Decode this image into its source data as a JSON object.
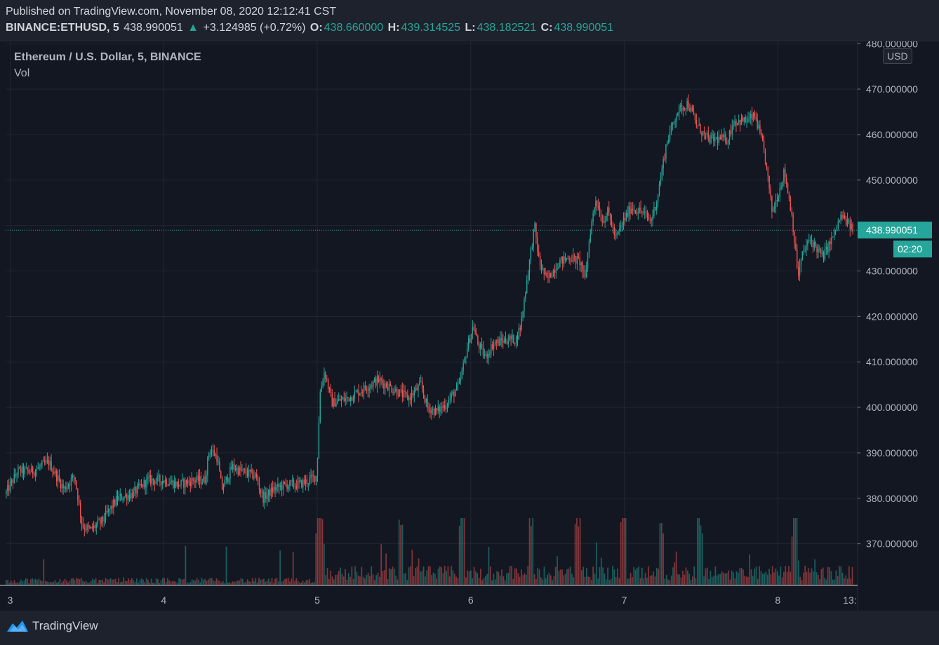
{
  "header": {
    "published": "Published on TradingView.com, November 08, 2020 12:12:41 CST",
    "symbol": "BINANCE:ETHUSD, 5",
    "last": "438.990051",
    "arrow": "▲",
    "change": "+3.124985 (+0.72%)",
    "open_label": "O:",
    "open": "438.660000",
    "high_label": "H:",
    "high": "439.314525",
    "low_label": "L:",
    "low": "438.182521",
    "close_label": "C:",
    "close": "438.990051"
  },
  "legend": {
    "title": "Ethereum / U.S. Dollar, 5, BINANCE",
    "volume_label": "Vol"
  },
  "currency_badge": "USD",
  "footer": {
    "brand": "TradingView"
  },
  "colors": {
    "up": "#26a69a",
    "down": "#ef5350",
    "background": "#131722",
    "grid": "#232632",
    "text": "#b2b5be"
  },
  "chart_data": {
    "type": "candlestick",
    "symbol": "BINANCE:ETHUSD",
    "interval": "5",
    "y_tick_labels": [
      "370.000000",
      "380.000000",
      "390.000000",
      "400.000000",
      "410.000000",
      "420.000000",
      "430.000000",
      "440.000000",
      "450.000000",
      "460.000000",
      "470.000000",
      "480.000000"
    ],
    "y_ticks": [
      370,
      380,
      390,
      400,
      410,
      420,
      430,
      440,
      450,
      460,
      470,
      480
    ],
    "ylim": [
      361,
      480.5
    ],
    "x_tick_labels": [
      "3",
      "4",
      "5",
      "6",
      "7",
      "8",
      "13:"
    ],
    "x_ticks_day": [
      3,
      4,
      5,
      6,
      7,
      8,
      8.5
    ],
    "xlim_day": [
      2.97,
      8.52
    ],
    "last_price": 438.990051,
    "last_price_label": "438.990051",
    "countdown_label": "02:20",
    "price_path": [
      [
        2.97,
        381
      ],
      [
        3.05,
        386
      ],
      [
        3.15,
        386
      ],
      [
        3.25,
        388
      ],
      [
        3.35,
        382
      ],
      [
        3.42,
        385
      ],
      [
        3.47,
        374
      ],
      [
        3.52,
        373
      ],
      [
        3.6,
        375
      ],
      [
        3.7,
        380
      ],
      [
        3.8,
        381
      ],
      [
        3.9,
        384
      ],
      [
        4.0,
        384
      ],
      [
        4.1,
        383
      ],
      [
        4.2,
        384
      ],
      [
        4.27,
        384
      ],
      [
        4.3,
        391
      ],
      [
        4.35,
        389
      ],
      [
        4.38,
        382
      ],
      [
        4.45,
        387
      ],
      [
        4.5,
        386
      ],
      [
        4.6,
        385
      ],
      [
        4.65,
        380
      ],
      [
        4.72,
        382
      ],
      [
        4.8,
        383
      ],
      [
        4.88,
        383
      ],
      [
        4.95,
        384
      ],
      [
        5.0,
        385
      ],
      [
        5.02,
        403
      ],
      [
        5.05,
        408
      ],
      [
        5.1,
        401
      ],
      [
        5.2,
        402
      ],
      [
        5.3,
        404
      ],
      [
        5.4,
        406
      ],
      [
        5.5,
        404
      ],
      [
        5.6,
        402
      ],
      [
        5.68,
        405
      ],
      [
        5.72,
        400
      ],
      [
        5.78,
        399
      ],
      [
        5.85,
        401
      ],
      [
        5.93,
        405
      ],
      [
        5.98,
        413
      ],
      [
        6.02,
        418
      ],
      [
        6.05,
        414
      ],
      [
        6.1,
        411
      ],
      [
        6.15,
        414
      ],
      [
        6.25,
        415
      ],
      [
        6.3,
        415
      ],
      [
        6.33,
        418
      ],
      [
        6.37,
        428
      ],
      [
        6.42,
        440
      ],
      [
        6.45,
        432
      ],
      [
        6.5,
        428
      ],
      [
        6.58,
        432
      ],
      [
        6.65,
        433
      ],
      [
        6.72,
        432
      ],
      [
        6.75,
        428
      ],
      [
        6.78,
        438
      ],
      [
        6.82,
        446
      ],
      [
        6.86,
        441
      ],
      [
        6.9,
        443
      ],
      [
        6.95,
        437
      ],
      [
        7.0,
        441
      ],
      [
        7.05,
        444
      ],
      [
        7.12,
        443
      ],
      [
        7.18,
        441
      ],
      [
        7.22,
        446
      ],
      [
        7.28,
        458
      ],
      [
        7.35,
        465
      ],
      [
        7.42,
        467
      ],
      [
        7.48,
        462
      ],
      [
        7.55,
        459
      ],
      [
        7.62,
        459
      ],
      [
        7.68,
        459
      ],
      [
        7.72,
        463
      ],
      [
        7.8,
        463
      ],
      [
        7.86,
        464
      ],
      [
        7.92,
        456
      ],
      [
        7.97,
        443
      ],
      [
        8.01,
        447
      ],
      [
        8.05,
        452
      ],
      [
        8.1,
        442
      ],
      [
        8.12,
        435
      ],
      [
        8.14,
        429
      ],
      [
        8.17,
        434
      ],
      [
        8.22,
        437
      ],
      [
        8.3,
        433
      ],
      [
        8.36,
        437
      ],
      [
        8.42,
        442
      ],
      [
        8.45,
        441
      ],
      [
        8.5,
        439
      ]
    ],
    "volume_spikes_day": [
      5.01,
      5.02,
      5.55,
      5.95,
      6.4,
      6.7,
      7.0,
      7.25,
      7.5,
      8.12
    ],
    "note_volume_unit": "relative"
  }
}
